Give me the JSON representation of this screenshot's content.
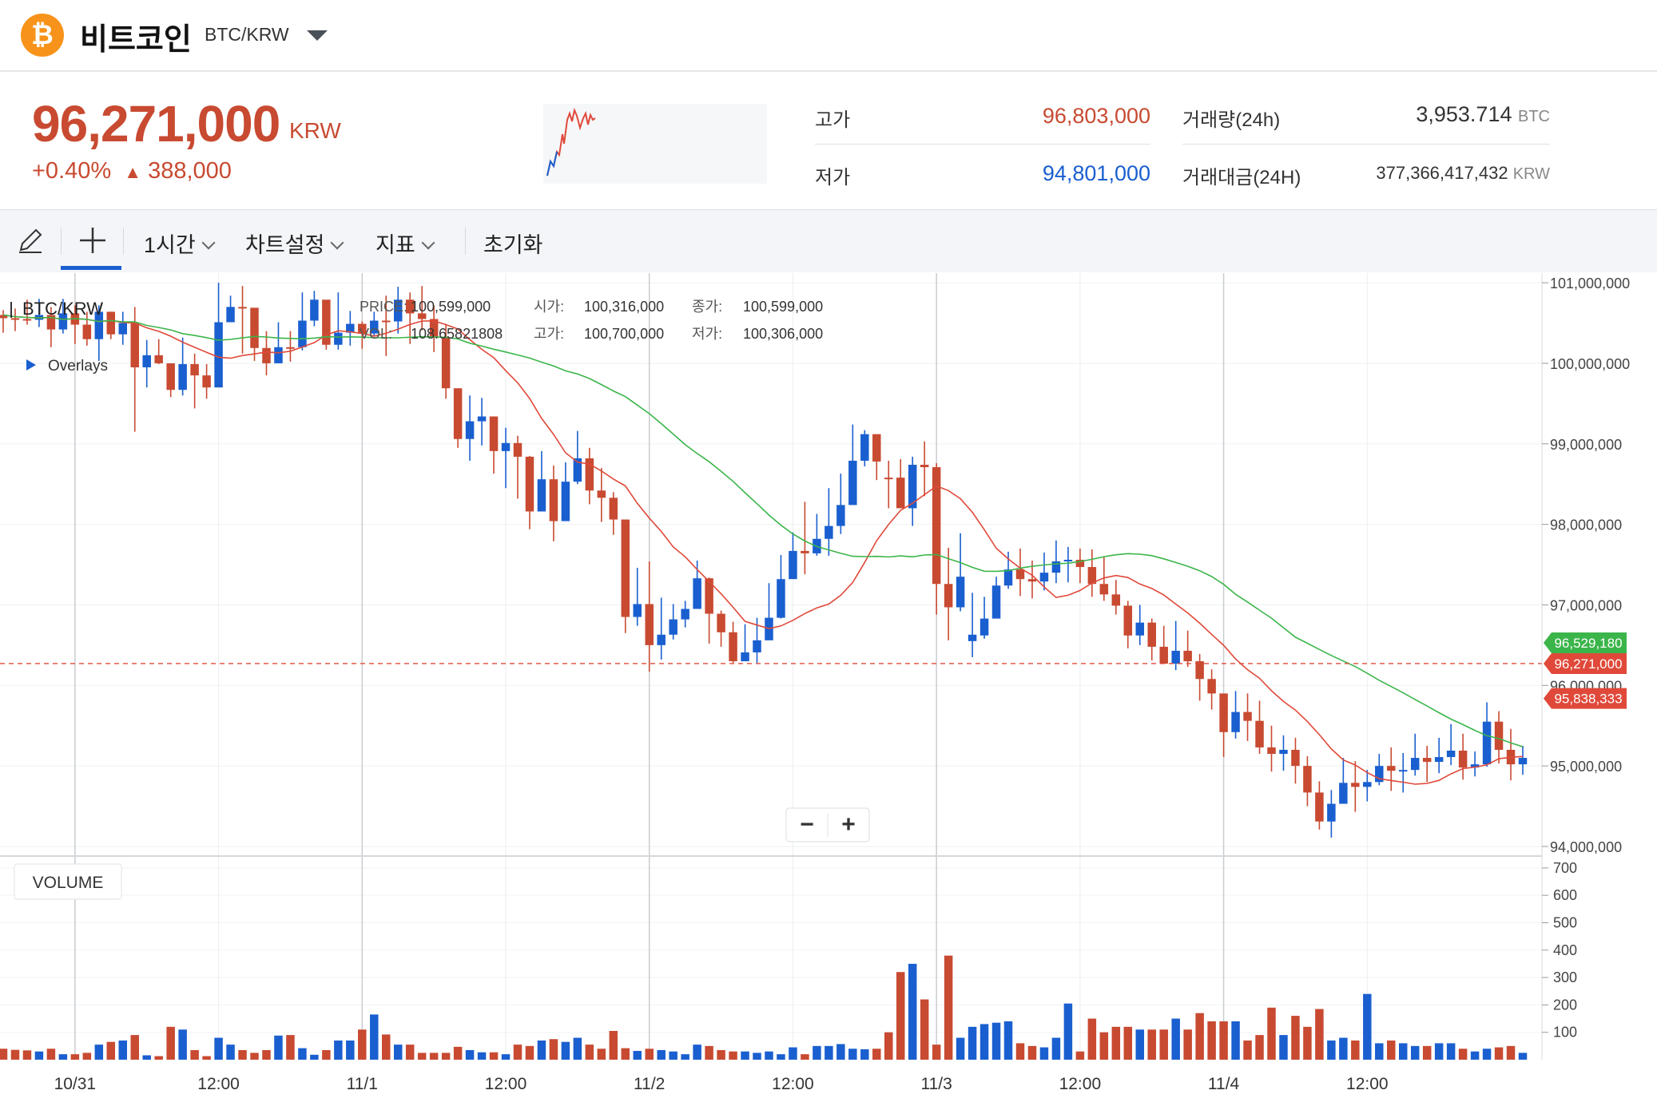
{
  "header": {
    "coin_symbol": "₿",
    "coin_name": "비트코인",
    "pair": "BTC/KRW",
    "icon": "chevron-down-icon"
  },
  "ticker": {
    "price": "96,271,000",
    "price_unit": "KRW",
    "change_pct": "+0.40%",
    "change_arrow": "▲",
    "change_abs": "388,000",
    "color_up": "#c84a31",
    "color_down": "#1a5fd0",
    "stats": {
      "high_label": "고가",
      "high_value": "96,803,000",
      "low_label": "저가",
      "low_value": "94,801,000",
      "volume_label": "거래량(24h)",
      "volume_value": "3,953.714",
      "volume_unit": "BTC",
      "amount_label": "거래대금(24H)",
      "amount_value": "377,366,417,432",
      "amount_unit": "KRW"
    }
  },
  "toolbar": {
    "interval": "1시간",
    "settings": "차트설정",
    "indicators": "지표",
    "reset": "초기화",
    "draw_icon": "pencil-icon",
    "crosshair_icon": "crosshair-icon"
  },
  "legend": {
    "symbol": "BTC/KRW",
    "overlays": "Overlays",
    "price_label": "PRICE:",
    "price_value": "100,599,000",
    "vol_label": "VOL:",
    "vol_value": "108.65821808",
    "open_label": "시가:",
    "open_value": "100,316,000",
    "high_label": "고가:",
    "high_value": "100,700,000",
    "close_label": "종가:",
    "close_value": "100,599,000",
    "low_label": "저가:",
    "low_value": "100,306,000"
  },
  "zoom": {
    "minus": "−",
    "plus": "+"
  },
  "volume_label": "VOLUME",
  "chart_data": {
    "type": "candlestick",
    "interval": "1h",
    "x_ticks": [
      "10/31",
      "12:00",
      "11/1",
      "12:00",
      "11/2",
      "12:00",
      "11/3",
      "12:00",
      "11/4",
      "12:00"
    ],
    "price_axis_ticks": [
      "101,000,000",
      "100,000,000",
      "99,000,000",
      "98,000,000",
      "97,000,000",
      "96,000,000",
      "95,000,000",
      "94,000,000"
    ],
    "price_range": [
      93980000,
      101120000
    ],
    "volume_axis_ticks": [
      "700",
      "600",
      "500",
      "400",
      "300",
      "200",
      "100"
    ],
    "volume_range": [
      0,
      720
    ],
    "last_price": 96271000,
    "price_tags": [
      {
        "label": "96,529,180",
        "value": 96529180,
        "color": "#3bb54a"
      },
      {
        "label": "96,271,000",
        "value": 96271000,
        "color": "#e0493a"
      },
      {
        "label": "95,838,333",
        "value": 95838333,
        "color": "#e0493a"
      }
    ],
    "ohlcv": [
      [
        100560000,
        100660000,
        100380000,
        100600000,
        40
      ],
      [
        100550000,
        100680000,
        100400000,
        100560000,
        36
      ],
      [
        100540000,
        100790000,
        100480000,
        100550000,
        34
      ],
      [
        100600000,
        100800000,
        100450000,
        100540000,
        30
      ],
      [
        100420000,
        100700000,
        100200000,
        100600000,
        40
      ],
      [
        100620000,
        100800000,
        100370000,
        100420000,
        20
      ],
      [
        100480000,
        100720000,
        100240000,
        100620000,
        20
      ],
      [
        100300000,
        100640000,
        100220000,
        100480000,
        25
      ],
      [
        100640000,
        100720000,
        100030000,
        100300000,
        55
      ],
      [
        100360000,
        100640000,
        100300000,
        100640000,
        65
      ],
      [
        100500000,
        100640000,
        100230000,
        100360000,
        70
      ],
      [
        99950000,
        100700000,
        99150000,
        100500000,
        90
      ],
      [
        100100000,
        100290000,
        99700000,
        99950000,
        16
      ],
      [
        100000000,
        100300000,
        99990000,
        100100000,
        13
      ],
      [
        99670000,
        100000000,
        99580000,
        100000000,
        120
      ],
      [
        99990000,
        100320000,
        99600000,
        99670000,
        110
      ],
      [
        99850000,
        100120000,
        99440000,
        99990000,
        35
      ],
      [
        99700000,
        99990000,
        99560000,
        99850000,
        13
      ],
      [
        100510000,
        101000000,
        99880000,
        99700000,
        80
      ],
      [
        100700000,
        100840000,
        100520000,
        100510000,
        55
      ],
      [
        100690000,
        100960000,
        100120000,
        100700000,
        35
      ],
      [
        100190000,
        100500000,
        100030000,
        100690000,
        25
      ],
      [
        100000000,
        100400000,
        99850000,
        100190000,
        35
      ],
      [
        100200000,
        100510000,
        100030000,
        100000000,
        88
      ],
      [
        100200000,
        100400000,
        100020000,
        100200000,
        90
      ],
      [
        100530000,
        100880000,
        100160000,
        100200000,
        42
      ],
      [
        100790000,
        100900000,
        100460000,
        100530000,
        18
      ],
      [
        100230000,
        100740000,
        100170000,
        100790000,
        35
      ],
      [
        100380000,
        100880000,
        100170000,
        100230000,
        70
      ],
      [
        100490000,
        100650000,
        100220000,
        100380000,
        70
      ],
      [
        100370000,
        100520000,
        100180000,
        100490000,
        110
      ],
      [
        100530000,
        100640000,
        100340000,
        100370000,
        165
      ],
      [
        100520000,
        100840000,
        100090000,
        100530000,
        92
      ],
      [
        100790000,
        100950000,
        100370000,
        100520000,
        55
      ],
      [
        100620000,
        100880000,
        100240000,
        100790000,
        55
      ],
      [
        100550000,
        100960000,
        100410000,
        100620000,
        25
      ],
      [
        100320000,
        100720000,
        100140000,
        100550000,
        25
      ],
      [
        99690000,
        100480000,
        99560000,
        100320000,
        25
      ],
      [
        99060000,
        99690000,
        98950000,
        99690000,
        47
      ],
      [
        99280000,
        99600000,
        98790000,
        99060000,
        35
      ],
      [
        99340000,
        99570000,
        98980000,
        99280000,
        27
      ],
      [
        98910000,
        99330000,
        98630000,
        99340000,
        27
      ],
      [
        99010000,
        99200000,
        98450000,
        98910000,
        20
      ],
      [
        98840000,
        99100000,
        98320000,
        99010000,
        55
      ],
      [
        98160000,
        98850000,
        97940000,
        98840000,
        50
      ],
      [
        98560000,
        98910000,
        98190000,
        98160000,
        70
      ],
      [
        98040000,
        98730000,
        97790000,
        98560000,
        75
      ],
      [
        98530000,
        98770000,
        98130000,
        98040000,
        65
      ],
      [
        98820000,
        99160000,
        98500000,
        98530000,
        80
      ],
      [
        98420000,
        98950000,
        98250000,
        98820000,
        55
      ],
      [
        98330000,
        98700000,
        98030000,
        98420000,
        40
      ],
      [
        98060000,
        98400000,
        97870000,
        98330000,
        105
      ],
      [
        96850000,
        98060000,
        96650000,
        98060000,
        42
      ],
      [
        97010000,
        97460000,
        96740000,
        96850000,
        32
      ],
      [
        96500000,
        97540000,
        96170000,
        97010000,
        40
      ],
      [
        96630000,
        97090000,
        96320000,
        96500000,
        35
      ],
      [
        96820000,
        97010000,
        96570000,
        96630000,
        30
      ],
      [
        96950000,
        97050000,
        96720000,
        96820000,
        20
      ],
      [
        97330000,
        97550000,
        97090000,
        96950000,
        55
      ],
      [
        96890000,
        97340000,
        96520000,
        97330000,
        50
      ],
      [
        96660000,
        96930000,
        96480000,
        96890000,
        35
      ],
      [
        96300000,
        96790000,
        96280000,
        96660000,
        30
      ],
      [
        96410000,
        96760000,
        96340000,
        96300000,
        30
      ],
      [
        96560000,
        96840000,
        96280000,
        96410000,
        25
      ],
      [
        96840000,
        97270000,
        96580000,
        96560000,
        30
      ],
      [
        97320000,
        97620000,
        96830000,
        96840000,
        20
      ],
      [
        97670000,
        97900000,
        97460000,
        97320000,
        45
      ],
      [
        97640000,
        98280000,
        97380000,
        97670000,
        20
      ],
      [
        97820000,
        98130000,
        97610000,
        97640000,
        50
      ],
      [
        97980000,
        98450000,
        97610000,
        97820000,
        50
      ],
      [
        98240000,
        98630000,
        97880000,
        97980000,
        57
      ],
      [
        98790000,
        99240000,
        98310000,
        98240000,
        40
      ],
      [
        99120000,
        99170000,
        98720000,
        98790000,
        38
      ],
      [
        98780000,
        99060000,
        98550000,
        99120000,
        40
      ],
      [
        98580000,
        98790000,
        98200000,
        98580000,
        100
      ],
      [
        98200000,
        98810000,
        98380000,
        98580000,
        320
      ],
      [
        98740000,
        98840000,
        97980000,
        98200000,
        350
      ],
      [
        98710000,
        99030000,
        98350000,
        98740000,
        220
      ],
      [
        97260000,
        98760000,
        96880000,
        98710000,
        55
      ],
      [
        96970000,
        97710000,
        96560000,
        97260000,
        380
      ],
      [
        97350000,
        97890000,
        96920000,
        96970000,
        80
      ],
      [
        96630000,
        97150000,
        96350000,
        96550000,
        120
      ],
      [
        96830000,
        97100000,
        96580000,
        96620000,
        130
      ],
      [
        97240000,
        97350000,
        96900000,
        96830000,
        135
      ],
      [
        97440000,
        97660000,
        97200000,
        97240000,
        140
      ],
      [
        97320000,
        97700000,
        97110000,
        97440000,
        60
      ],
      [
        97290000,
        97550000,
        97080000,
        97320000,
        50
      ],
      [
        97400000,
        97650000,
        97180000,
        97290000,
        45
      ],
      [
        97540000,
        97800000,
        97270000,
        97400000,
        80
      ],
      [
        97560000,
        97720000,
        97280000,
        97540000,
        205
      ],
      [
        97470000,
        97700000,
        97270000,
        97560000,
        30
      ],
      [
        97260000,
        97690000,
        97100000,
        97470000,
        150
      ],
      [
        97130000,
        97600000,
        97050000,
        97260000,
        100
      ],
      [
        96990000,
        97310000,
        96880000,
        97130000,
        120
      ],
      [
        96620000,
        97050000,
        96460000,
        96990000,
        120
      ],
      [
        96780000,
        97000000,
        96500000,
        96620000,
        110
      ],
      [
        96480000,
        96830000,
        96310000,
        96780000,
        110
      ],
      [
        96270000,
        96740000,
        96270000,
        96480000,
        110
      ],
      [
        96430000,
        96800000,
        96190000,
        96270000,
        150
      ],
      [
        96300000,
        96680000,
        96230000,
        96430000,
        110
      ],
      [
        96080000,
        96390000,
        95810000,
        96300000,
        170
      ],
      [
        95900000,
        96200000,
        95700000,
        96080000,
        140
      ],
      [
        95420000,
        95830000,
        95110000,
        95900000,
        140
      ],
      [
        95670000,
        95930000,
        95340000,
        95420000,
        140
      ],
      [
        95560000,
        95900000,
        95310000,
        95670000,
        70
      ],
      [
        95230000,
        95810000,
        95150000,
        95560000,
        90
      ],
      [
        95150000,
        95500000,
        94930000,
        95230000,
        190
      ],
      [
        95200000,
        95380000,
        94940000,
        95150000,
        90
      ],
      [
        95000000,
        95350000,
        94780000,
        95200000,
        160
      ],
      [
        94670000,
        95120000,
        94500000,
        95000000,
        120
      ],
      [
        94310000,
        94810000,
        94210000,
        94670000,
        185
      ],
      [
        94530000,
        94700000,
        94110000,
        94310000,
        70
      ],
      [
        94790000,
        95100000,
        94600000,
        94530000,
        80
      ],
      [
        94740000,
        95060000,
        94430000,
        94790000,
        70
      ],
      [
        94800000,
        94950000,
        94560000,
        94740000,
        240
      ],
      [
        95000000,
        95150000,
        94760000,
        94800000,
        60
      ],
      [
        94940000,
        95230000,
        94690000,
        95000000,
        70
      ],
      [
        94950000,
        95160000,
        94670000,
        94940000,
        60
      ],
      [
        95100000,
        95400000,
        94880000,
        94950000,
        50
      ],
      [
        95050000,
        95250000,
        94800000,
        95100000,
        50
      ],
      [
        95110000,
        95350000,
        94910000,
        95050000,
        60
      ],
      [
        95190000,
        95520000,
        95010000,
        95110000,
        60
      ],
      [
        94980000,
        95400000,
        94830000,
        95190000,
        40
      ],
      [
        95020000,
        95180000,
        94870000,
        94980000,
        30
      ],
      [
        95550000,
        95790000,
        94990000,
        95020000,
        40
      ],
      [
        95200000,
        95680000,
        95030000,
        95550000,
        45
      ],
      [
        95020000,
        95460000,
        94820000,
        95200000,
        50
      ],
      [
        95100000,
        95250000,
        94890000,
        95020000,
        25
      ]
    ]
  }
}
